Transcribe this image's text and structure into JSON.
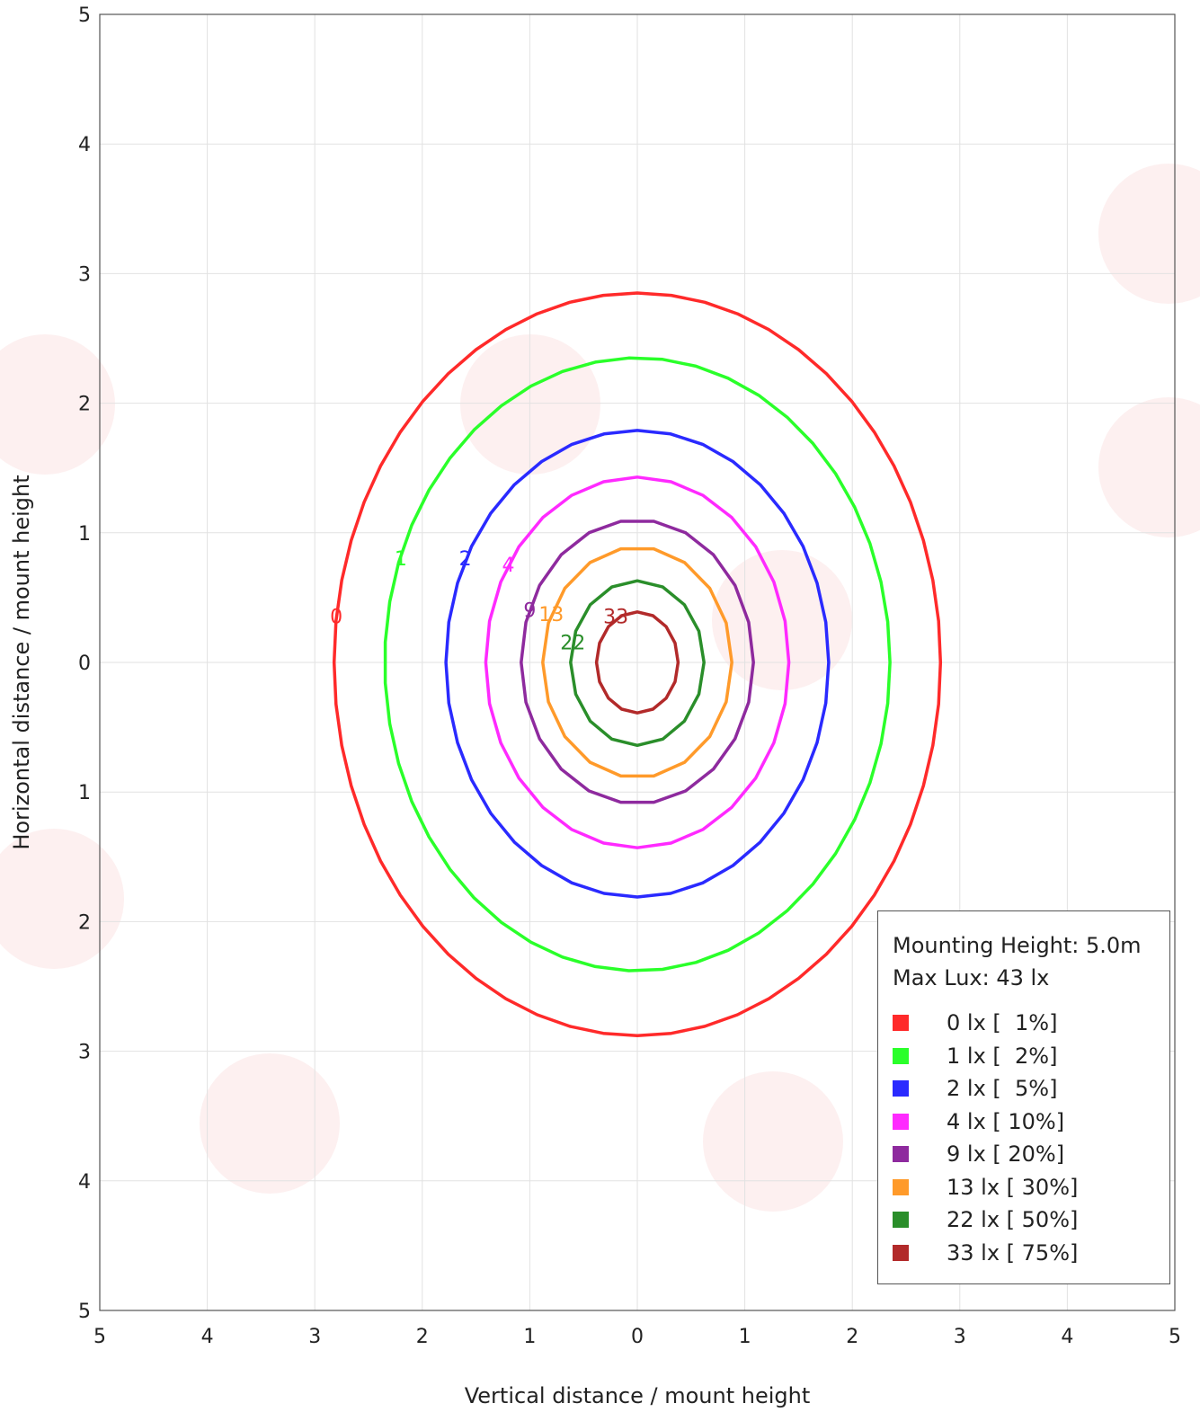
{
  "chart_data": {
    "type": "contour",
    "xlabel": "Vertical distance / mount height",
    "ylabel": "Horizontal distance / mount height",
    "xlim": [
      -5,
      5
    ],
    "ylim": [
      -5,
      5
    ],
    "x_ticks": [
      "5",
      "4",
      "3",
      "2",
      "1",
      "0",
      "1",
      "2",
      "3",
      "4",
      "5"
    ],
    "y_ticks": [
      "5",
      "4",
      "3",
      "2",
      "1",
      "0",
      "1",
      "2",
      "3",
      "4",
      "5"
    ],
    "grid": true,
    "legend_position": "bottom-right",
    "info": {
      "mounting_height": "Mounting Height: 5.0m",
      "max_lux": "Max Lux: 43 lx"
    },
    "contours": [
      {
        "label": "0",
        "legend": "0 lx [  1%]",
        "color": "#ff2a2a",
        "rx": 2.82,
        "ry_top": 2.85,
        "ry_bottom": 2.88
      },
      {
        "label": "1",
        "legend": "1 lx [  2%]",
        "color": "#2aff2a",
        "rx": 2.35,
        "ry_top": 2.35,
        "ry_bottom": 2.38
      },
      {
        "label": "2",
        "legend": "2 lx [  5%]",
        "color": "#2a2aff",
        "rx": 1.78,
        "ry_top": 1.79,
        "ry_bottom": 1.81
      },
      {
        "label": "4",
        "legend": "4 lx [ 10%]",
        "color": "#ff2aff",
        "rx": 1.41,
        "ry_top": 1.43,
        "ry_bottom": 1.43
      },
      {
        "label": "9",
        "legend": "9 lx [ 20%]",
        "color": "#8e2a9e",
        "rx": 1.08,
        "ry_top": 1.1,
        "ry_bottom": 1.09
      },
      {
        "label": "13",
        "legend": "13 lx [ 30%]",
        "color": "#ff9a2a",
        "rx": 0.88,
        "ry_top": 0.89,
        "ry_bottom": 0.89
      },
      {
        "label": "22",
        "legend": "22 lx [ 50%]",
        "color": "#2a8e2a",
        "rx": 0.62,
        "ry_top": 0.63,
        "ry_bottom": 0.64
      },
      {
        "label": "33",
        "legend": "33 lx [ 75%]",
        "color": "#b22a2a",
        "rx": 0.38,
        "ry_top": 0.39,
        "ry_bottom": 0.39
      }
    ],
    "contour_label_positions": [
      {
        "label": "0",
        "x": -2.8,
        "y": 0.3
      },
      {
        "label": "1",
        "x": -2.2,
        "y": 0.75
      },
      {
        "label": "2",
        "x": -1.6,
        "y": 0.75
      },
      {
        "label": "4",
        "x": -1.2,
        "y": 0.7
      },
      {
        "label": "9",
        "x": -1.0,
        "y": 0.35
      },
      {
        "label": "13",
        "x": -0.8,
        "y": 0.32
      },
      {
        "label": "22",
        "x": -0.6,
        "y": 0.1
      },
      {
        "label": "33",
        "x": -0.2,
        "y": 0.3
      }
    ]
  }
}
